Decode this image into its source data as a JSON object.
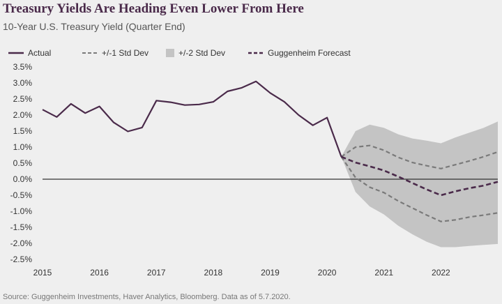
{
  "header": {
    "title": "Treasury Yields Are Heading Even Lower From Here",
    "subtitle": "10-Year U.S. Treasury Yield (Quarter End)"
  },
  "footer": {
    "source": "Source: Guggenheim Investments, Haver Analytics, Bloomberg. Data as of 5.7.2020."
  },
  "colors": {
    "actual": "#4a2a4a",
    "std1": "#7a7a7a",
    "std2_band": "#c4c4c4",
    "forecast": "#4a2a4a",
    "zero_line": "#333333"
  },
  "chart_data": {
    "type": "line",
    "title": "Treasury Yields Are Heading Even Lower From Here",
    "subtitle": "10-Year U.S. Treasury Yield (Quarter End)",
    "xlabel": "",
    "ylabel": "",
    "xlim": [
      2015,
      2023
    ],
    "ylim": [
      -2.5,
      3.5
    ],
    "x_ticks": [
      2015,
      2016,
      2017,
      2018,
      2019,
      2020,
      2021,
      2022
    ],
    "x_tick_labels": [
      "2015",
      "2016",
      "2017",
      "2018",
      "2019",
      "2020",
      "2021",
      "2022"
    ],
    "y_ticks": [
      3.5,
      3.0,
      2.5,
      2.0,
      1.5,
      1.0,
      0.5,
      0.0,
      -0.5,
      -1.0,
      -1.5,
      -2.0,
      -2.5
    ],
    "y_tick_labels": [
      "3.5%",
      "3.0%",
      "2.5%",
      "2.0%",
      "1.5%",
      "1.0%",
      "0.5%",
      "0.0%",
      "-0.5%",
      "-1.0%",
      "-1.5%",
      "-2.0%",
      "-2.5%"
    ],
    "legend": [
      "Actual",
      "+/-1 Std Dev",
      "+/-2 Std Dev",
      "Guggenheim Forecast"
    ],
    "series": [
      {
        "name": "Actual",
        "style": "solid",
        "x": [
          2015.0,
          2015.25,
          2015.5,
          2015.75,
          2016.0,
          2016.25,
          2016.5,
          2016.75,
          2017.0,
          2017.25,
          2017.5,
          2017.75,
          2018.0,
          2018.25,
          2018.5,
          2018.75,
          2019.0,
          2019.25,
          2019.5,
          2019.75,
          2020.0,
          2020.25
        ],
        "values": [
          2.17,
          1.94,
          2.35,
          2.06,
          2.27,
          1.77,
          1.49,
          1.61,
          2.45,
          2.4,
          2.31,
          2.33,
          2.41,
          2.74,
          2.85,
          3.05,
          2.69,
          2.41,
          2.0,
          1.68,
          1.92,
          0.7
        ]
      },
      {
        "name": "Guggenheim Forecast",
        "style": "dashed",
        "x": [
          2020.25,
          2020.5,
          2020.75,
          2021.0,
          2021.25,
          2021.5,
          2021.75,
          2022.0,
          2022.25,
          2022.5,
          2022.75,
          2023.0
        ],
        "values": [
          0.7,
          0.52,
          0.4,
          0.27,
          0.08,
          -0.12,
          -0.32,
          -0.5,
          -0.38,
          -0.28,
          -0.2,
          -0.08
        ]
      },
      {
        "name": "+1 Std Dev",
        "style": "dashed",
        "x": [
          2020.25,
          2020.5,
          2020.75,
          2021.0,
          2021.25,
          2021.5,
          2021.75,
          2022.0,
          2022.25,
          2022.5,
          2022.75,
          2023.0
        ],
        "values": [
          0.7,
          1.0,
          1.05,
          0.9,
          0.68,
          0.52,
          0.42,
          0.33,
          0.45,
          0.57,
          0.7,
          0.85
        ]
      },
      {
        "name": "-1 Std Dev",
        "style": "dashed",
        "x": [
          2020.25,
          2020.5,
          2020.75,
          2021.0,
          2021.25,
          2021.5,
          2021.75,
          2022.0,
          2022.25,
          2022.5,
          2022.75,
          2023.0
        ],
        "values": [
          0.7,
          0.05,
          -0.25,
          -0.42,
          -0.68,
          -0.9,
          -1.12,
          -1.32,
          -1.27,
          -1.18,
          -1.12,
          -1.05
        ]
      },
      {
        "name": "+/-2 Std Dev",
        "style": "band",
        "x": [
          2020.25,
          2020.5,
          2020.75,
          2021.0,
          2021.25,
          2021.5,
          2021.75,
          2022.0,
          2022.25,
          2022.5,
          2022.75,
          2023.0
        ],
        "upper": [
          0.7,
          1.5,
          1.7,
          1.6,
          1.4,
          1.27,
          1.2,
          1.12,
          1.3,
          1.45,
          1.6,
          1.8
        ],
        "lower": [
          0.7,
          -0.4,
          -0.85,
          -1.1,
          -1.45,
          -1.72,
          -1.95,
          -2.12,
          -2.12,
          -2.08,
          -2.05,
          -2.02
        ]
      }
    ]
  }
}
